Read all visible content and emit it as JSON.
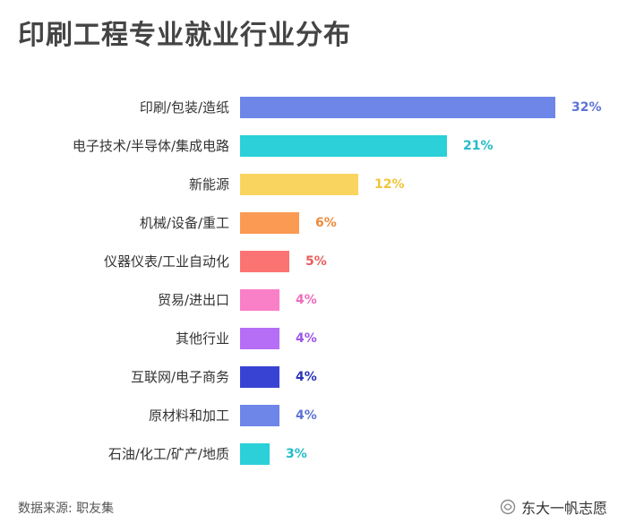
{
  "chart_data": {
    "type": "bar",
    "orientation": "horizontal",
    "title": "印刷工程专业就业行业分布",
    "categories": [
      "印刷/包装/造纸",
      "电子技术/半导体/集成电路",
      "新能源",
      "机械/设备/重工",
      "仪器仪表/工业自动化",
      "贸易/进出口",
      "其他行业",
      "互联网/电子商务",
      "原材料和加工",
      "石油/化工/矿产/地质"
    ],
    "values": [
      32,
      21,
      12,
      6,
      5,
      4,
      4,
      4,
      4,
      3
    ],
    "value_labels": [
      "32%",
      "21%",
      "12%",
      "6%",
      "5%",
      "4%",
      "4%",
      "4%",
      "4%",
      "3%"
    ],
    "unit": "%",
    "colors": [
      "#6d86e8",
      "#2bd0d8",
      "#f9d560",
      "#fb9a52",
      "#fb7473",
      "#f97fc7",
      "#b56ef5",
      "#3943d3",
      "#6d86e8",
      "#2bd0d8"
    ],
    "label_colors": [
      "#5c74d6",
      "#24bcc6",
      "#f2c53a",
      "#f08a3c",
      "#e85e5e",
      "#f06bbb",
      "#9c55e8",
      "#2a34b8",
      "#5c74d6",
      "#24bcc6"
    ],
    "xlim": [
      0,
      32
    ],
    "grid": false,
    "legend": "none"
  },
  "footer": {
    "source": "数据来源: 职友集",
    "watermark": "东大一帆志愿"
  }
}
